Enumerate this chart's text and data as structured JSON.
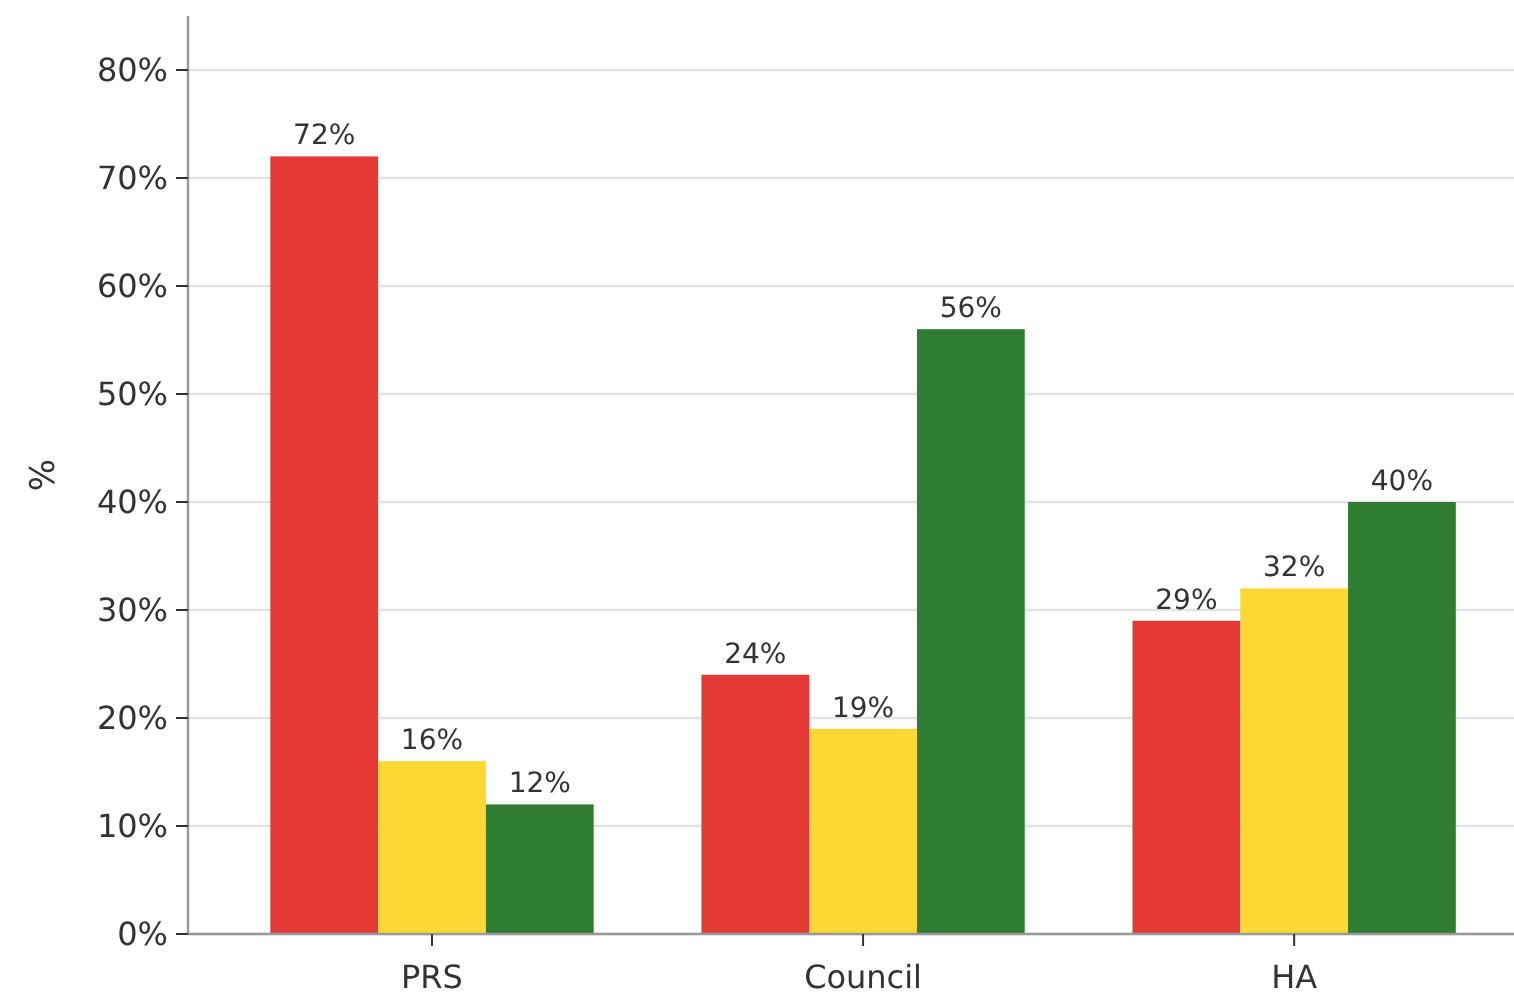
{
  "chart_data": {
    "type": "bar",
    "ylabel": "%",
    "categories": [
      "PRS",
      "Council",
      "HA"
    ],
    "series": [
      {
        "color": "#e53935",
        "values": [
          72,
          24,
          29
        ],
        "value_labels": [
          "72%",
          "24%",
          "29%"
        ]
      },
      {
        "color": "#fdd835",
        "values": [
          16,
          19,
          32
        ],
        "value_labels": [
          "16%",
          "19%",
          "32%"
        ]
      },
      {
        "color": "#2e7d32",
        "values": [
          12,
          56,
          40
        ],
        "value_labels": [
          "12%",
          "56%",
          "40%"
        ]
      }
    ],
    "ylim": [
      0,
      85
    ],
    "yticks": [
      {
        "value": 0,
        "label": "0%"
      },
      {
        "value": 10,
        "label": "10%"
      },
      {
        "value": 20,
        "label": "20%"
      },
      {
        "value": 30,
        "label": "30%"
      },
      {
        "value": 40,
        "label": "40%"
      },
      {
        "value": 50,
        "label": "50%"
      },
      {
        "value": 60,
        "label": "60%"
      },
      {
        "value": 70,
        "label": "70%"
      },
      {
        "value": 80,
        "label": "80%"
      }
    ],
    "grid": "y"
  }
}
